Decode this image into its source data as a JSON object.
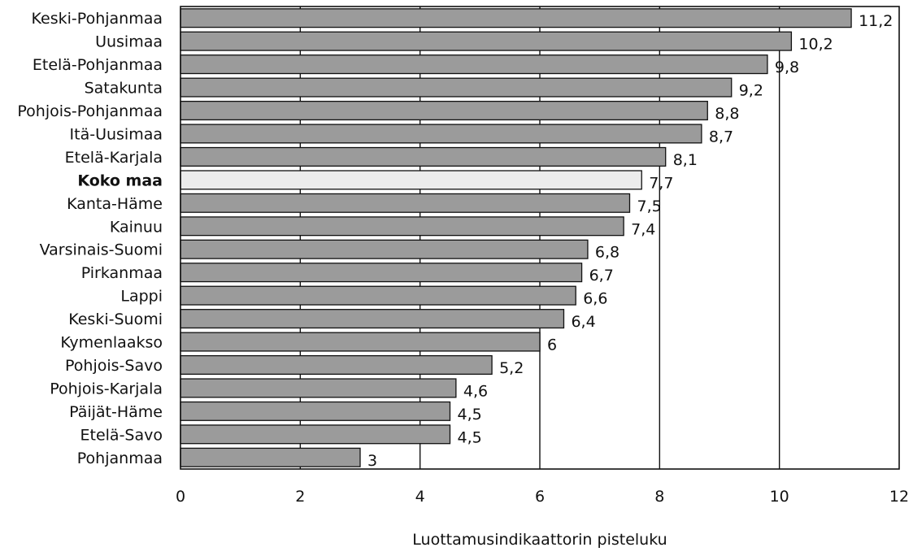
{
  "chart_data": {
    "type": "bar",
    "orientation": "horizontal",
    "title": "",
    "xlabel": "Luottamusindikaattorin pisteluku",
    "ylabel": "",
    "xlim": [
      0,
      12
    ],
    "x_ticks": [
      "0",
      "2",
      "4",
      "6",
      "8",
      "10",
      "12"
    ],
    "grid": "vertical gridlines at major ticks",
    "categories": [
      "Keski-Pohjanmaa",
      "Uusimaa",
      "Etelä-Pohjanmaa",
      "Satakunta",
      "Pohjois-Pohjanmaa",
      "Itä-Uusimaa",
      "Etelä-Karjala",
      "Koko maa",
      "Kanta-Häme",
      "Kainuu",
      "Varsinais-Suomi",
      "Pirkanmaa",
      "Lappi",
      "Keski-Suomi",
      "Kymenlaakso",
      "Pohjois-Savo",
      "Pohjois-Karjala",
      "Päijät-Häme",
      "Etelä-Savo",
      "Pohjanmaa"
    ],
    "values": [
      11.2,
      10.2,
      9.8,
      9.2,
      8.8,
      8.7,
      8.1,
      7.7,
      7.5,
      7.4,
      6.8,
      6.7,
      6.6,
      6.4,
      6,
      5.2,
      4.6,
      4.5,
      4.5,
      3
    ],
    "value_labels": [
      "11,2",
      "10,2",
      "9,8",
      "9,2",
      "8,8",
      "8,7",
      "8,1",
      "7,7",
      "7,5",
      "7,4",
      "6,8",
      "6,7",
      "6,6",
      "6,4",
      "6",
      "5,2",
      "4,6",
      "4,5",
      "4,5",
      "3"
    ],
    "highlight_category": "Koko maa",
    "colors": {
      "bar_fill": "#9b9b9b",
      "highlight_fill": "#ececec",
      "bar_stroke": "#111111",
      "grid": "#111111"
    }
  }
}
